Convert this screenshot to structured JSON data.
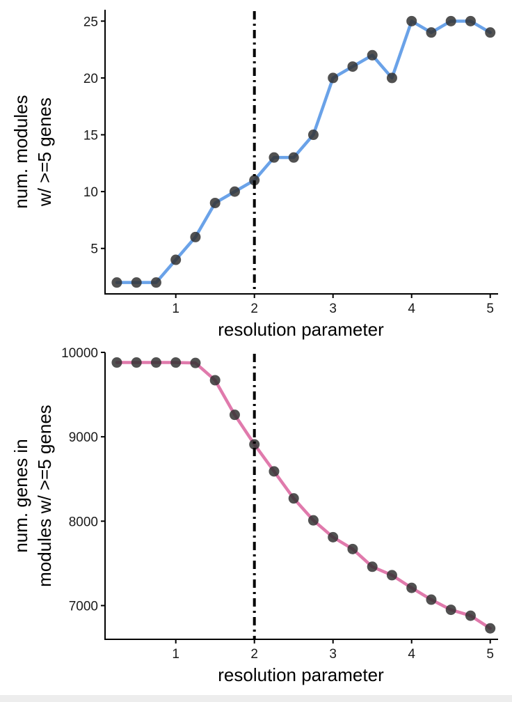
{
  "chart_data": [
    {
      "type": "line",
      "xlabel": "resolution parameter",
      "ylabel_lines": [
        "num. modules",
        "w/ >=5 genes"
      ],
      "line_color": "#6aa2e8",
      "point_color": "#333333",
      "vline_x": 2,
      "xlim": [
        0.1,
        5.1
      ],
      "ylim": [
        1.0,
        26.0
      ],
      "x_ticks": [
        1,
        2,
        3,
        4,
        5
      ],
      "x_tick_labels": [
        "1",
        "2",
        "3",
        "4",
        "5"
      ],
      "y_ticks": [
        5,
        10,
        15,
        20,
        25
      ],
      "y_tick_labels": [
        "5",
        "10",
        "15",
        "20",
        "25"
      ],
      "grid": false,
      "x": [
        0.25,
        0.5,
        0.75,
        1.0,
        1.25,
        1.5,
        1.75,
        2.0,
        2.25,
        2.5,
        2.75,
        3.0,
        3.25,
        3.5,
        3.75,
        4.0,
        4.25,
        4.5,
        4.75,
        5.0
      ],
      "values": [
        2,
        2,
        2,
        4,
        6,
        9,
        10,
        11,
        13,
        13,
        15,
        20,
        21,
        22,
        20,
        25,
        24,
        25,
        25,
        24
      ]
    },
    {
      "type": "line",
      "xlabel": "resolution parameter",
      "ylabel_lines": [
        "num. genes in",
        "modules w/ >=5 genes"
      ],
      "line_color": "#e07aac",
      "point_color": "#333333",
      "vline_x": 2,
      "xlim": [
        0.1,
        5.1
      ],
      "ylim": [
        6600,
        10000
      ],
      "x_ticks": [
        1,
        2,
        3,
        4,
        5
      ],
      "x_tick_labels": [
        "1",
        "2",
        "3",
        "4",
        "5"
      ],
      "y_ticks": [
        7000,
        8000,
        9000,
        10000
      ],
      "y_tick_labels": [
        "7000",
        "8000",
        "9000",
        "10000"
      ],
      "grid": false,
      "x": [
        0.25,
        0.5,
        0.75,
        1.0,
        1.25,
        1.5,
        1.75,
        2.0,
        2.25,
        2.5,
        2.75,
        3.0,
        3.25,
        3.5,
        3.75,
        4.0,
        4.25,
        4.5,
        4.75,
        5.0
      ],
      "values": [
        9880,
        9880,
        9880,
        9880,
        9875,
        9670,
        9260,
        8910,
        8590,
        8270,
        8010,
        7810,
        7670,
        7460,
        7360,
        7210,
        7070,
        6950,
        6880,
        6730
      ]
    }
  ]
}
